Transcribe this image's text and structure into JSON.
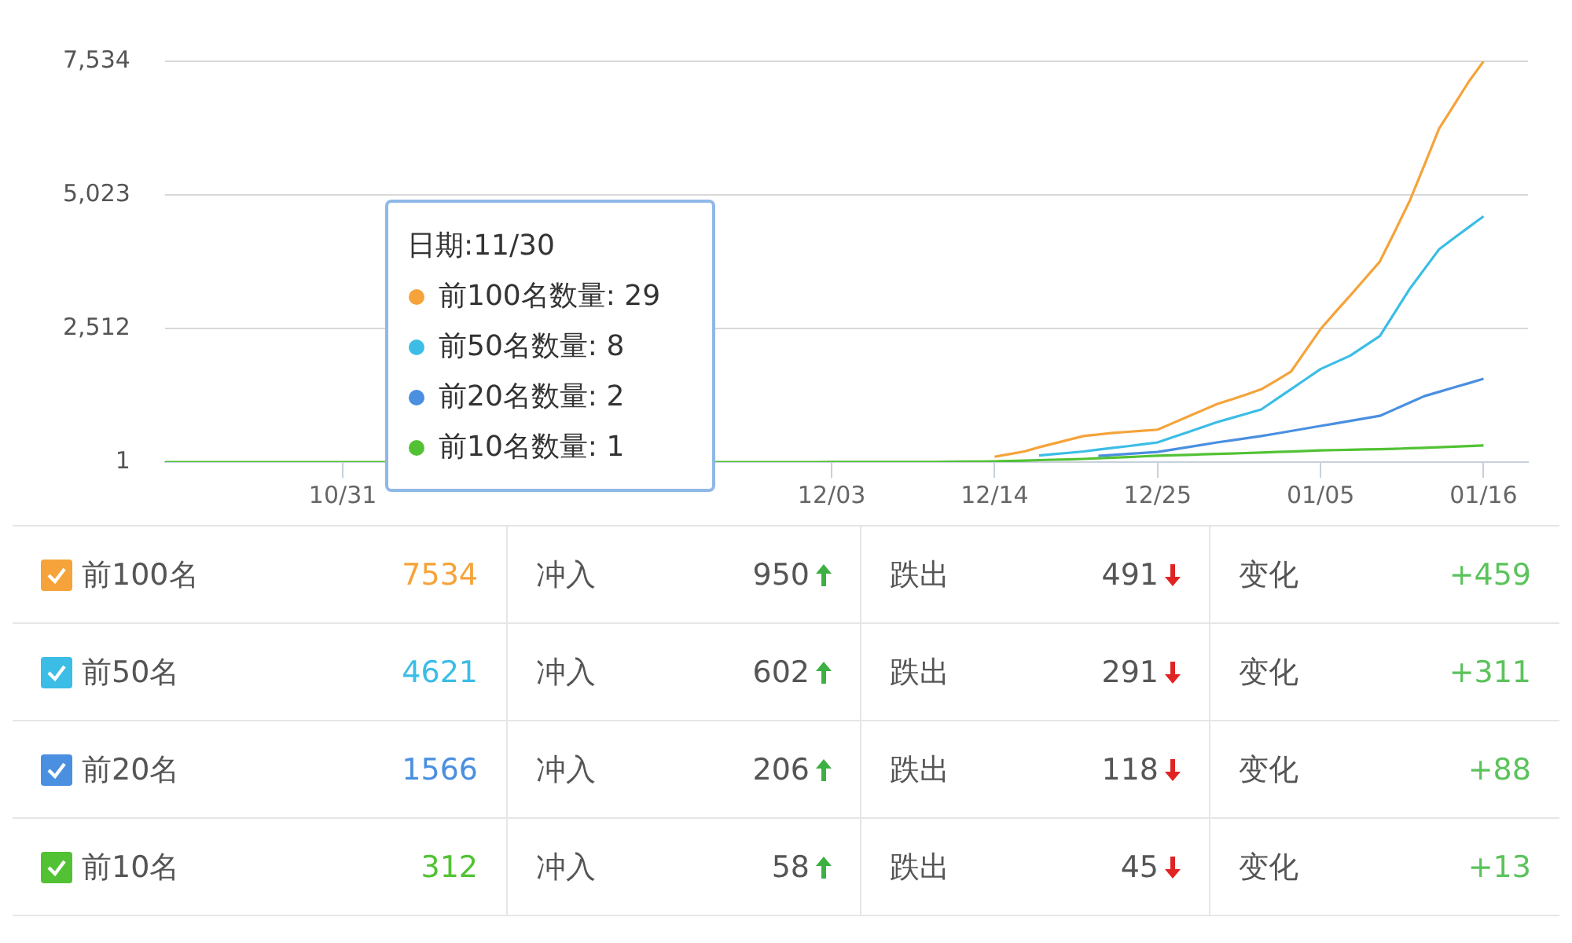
{
  "chart_data": {
    "type": "line",
    "categories": [
      null,
      null,
      null,
      null,
      null,
      null,
      null,
      null,
      null,
      null,
      null,
      null,
      "10/31",
      null,
      null,
      null,
      null,
      null,
      null,
      null,
      null,
      null,
      null,
      null,
      null,
      null,
      null,
      null,
      null,
      null,
      null,
      null,
      null,
      null,
      null,
      null,
      null,
      null,
      null,
      null,
      null,
      null,
      null,
      null,
      null,
      "12/03",
      null,
      null,
      null,
      null,
      null,
      null,
      null,
      null,
      null,
      null,
      "12/14",
      null,
      null,
      null,
      null,
      null,
      null,
      null,
      null,
      null,
      null,
      "12/25",
      null,
      null,
      null,
      null,
      null,
      null,
      null,
      null,
      null,
      null,
      "01/05",
      null,
      null,
      null,
      null,
      null,
      null,
      null,
      null,
      null,
      null,
      "01/16",
      null,
      null,
      null
    ],
    "series": [
      {
        "name": "前100名",
        "color": "#f5a33a",
        "values": [
          null,
          null,
          null,
          null,
          null,
          null,
          null,
          null,
          null,
          null,
          null,
          null,
          null,
          null,
          null,
          null,
          null,
          null,
          null,
          null,
          null,
          null,
          null,
          null,
          null,
          null,
          null,
          null,
          null,
          null,
          null,
          null,
          null,
          null,
          null,
          null,
          null,
          null,
          null,
          null,
          null,
          null,
          null,
          null,
          null,
          null,
          null,
          null,
          null,
          null,
          null,
          null,
          null,
          null,
          null,
          null,
          100,
          150,
          200,
          280,
          350,
          420,
          490,
          520,
          550,
          570,
          590,
          610,
          730,
          850,
          970,
          1090,
          1180,
          1270,
          1370,
          1530,
          1700,
          2100,
          2500,
          2820,
          3130,
          3450,
          3770,
          4330,
          4900,
          5580,
          6270,
          6710,
          7150,
          7534,
          null,
          null,
          null
        ]
      },
      {
        "name": "前50名",
        "color": "#3bbde6",
        "values": [
          null,
          null,
          null,
          null,
          null,
          null,
          null,
          null,
          null,
          null,
          null,
          null,
          null,
          null,
          null,
          null,
          null,
          null,
          null,
          null,
          null,
          null,
          null,
          null,
          null,
          null,
          null,
          null,
          null,
          null,
          null,
          null,
          null,
          null,
          null,
          null,
          null,
          null,
          null,
          null,
          null,
          null,
          null,
          null,
          null,
          null,
          null,
          null,
          null,
          null,
          null,
          null,
          null,
          null,
          null,
          null,
          null,
          null,
          null,
          125,
          150,
          175,
          200,
          235,
          270,
          300,
          335,
          370,
          465,
          560,
          655,
          750,
          830,
          910,
          990,
          1180,
          1370,
          1560,
          1750,
          1875,
          2000,
          2185,
          2370,
          2810,
          3250,
          3625,
          4000,
          4210,
          4415,
          4621,
          null,
          null,
          null
        ]
      },
      {
        "name": "前20名",
        "color": "#4a8fe0",
        "values": [
          null,
          null,
          null,
          null,
          null,
          null,
          null,
          null,
          null,
          null,
          null,
          null,
          null,
          null,
          null,
          null,
          null,
          null,
          null,
          null,
          null,
          null,
          null,
          null,
          null,
          null,
          null,
          null,
          null,
          null,
          null,
          null,
          null,
          null,
          null,
          null,
          null,
          null,
          null,
          null,
          null,
          null,
          null,
          null,
          null,
          null,
          null,
          null,
          null,
          null,
          null,
          null,
          null,
          null,
          null,
          null,
          null,
          null,
          null,
          null,
          null,
          null,
          null,
          118,
          136,
          154,
          172,
          190,
          235,
          280,
          325,
          370,
          410,
          450,
          490,
          537,
          585,
          632,
          680,
          727,
          775,
          822,
          870,
          993,
          1117,
          1240,
          1321,
          1403,
          1484,
          1566,
          null,
          null,
          null
        ]
      },
      {
        "name": "前10名",
        "color": "#52c234",
        "values": [
          1,
          1,
          1,
          1,
          1,
          1,
          1,
          1,
          1,
          1,
          1,
          1,
          1,
          1,
          1,
          1,
          null,
          null,
          null,
          null,
          null,
          null,
          null,
          null,
          null,
          null,
          null,
          null,
          null,
          null,
          null,
          null,
          null,
          null,
          null,
          null,
          null,
          1,
          1,
          1,
          1,
          1,
          1,
          1,
          1,
          2,
          2,
          3,
          3,
          4,
          4,
          5,
          5,
          8,
          10,
          12,
          15,
          22,
          30,
          38,
          45,
          52,
          60,
          72,
          84,
          96,
          108,
          120,
          129,
          137,
          146,
          154,
          163,
          171,
          180,
          190,
          200,
          210,
          220,
          226,
          232,
          238,
          244,
          250,
          260,
          270,
          281,
          291,
          302,
          312,
          null,
          null,
          null
        ]
      }
    ],
    "ylim": [
      1,
      7534
    ],
    "yticks": [
      1,
      {
        "value": 2512,
        "label": "2,512"
      },
      {
        "value": 5023,
        "label": "5,023"
      },
      {
        "value": 7534,
        "label": "7,534"
      }
    ],
    "grid": "y",
    "marker": "none",
    "line_style": "solid",
    "legend": "bottom",
    "annotations": [
      "日期:11/30",
      "前100名数量: 29",
      "前50名数量: 8",
      "前20名数量: 2",
      "前10名数量: 1",
      "7534",
      "冲入",
      "950",
      "跌出",
      "491",
      "变化",
      "+459",
      "4621",
      "冲入",
      "602",
      "跌出",
      "291",
      "变化",
      "+311",
      "1566",
      "冲入",
      "206",
      "跌出",
      "118",
      "变化",
      "+88",
      "312",
      "冲入",
      "58",
      "跌出",
      "45",
      "变化",
      "+13"
    ]
  }
}
